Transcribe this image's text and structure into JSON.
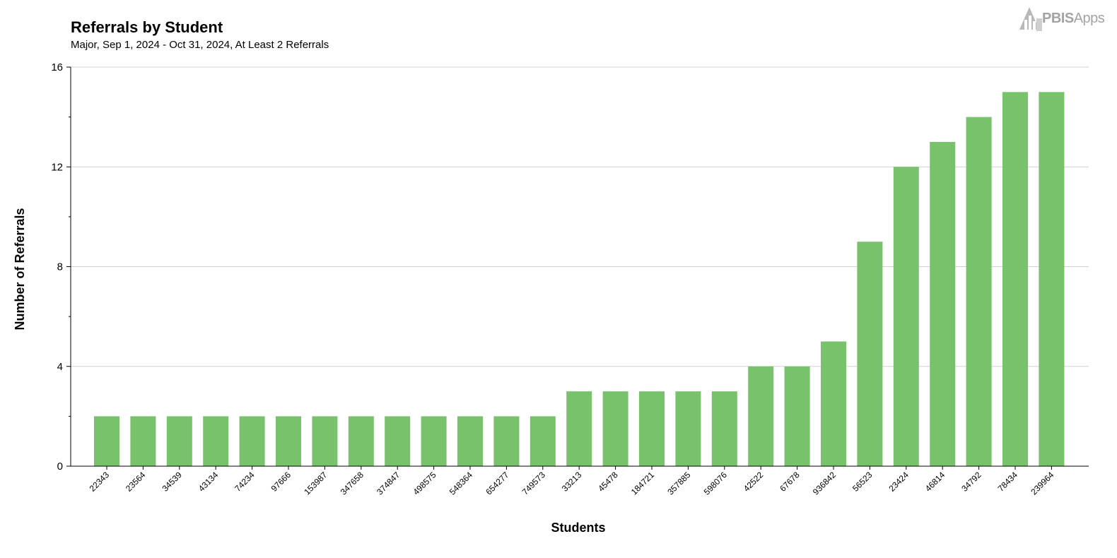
{
  "header": {
    "title": "Referrals by Student",
    "subtitle": "Major, Sep 1, 2024 - Oct 31, 2024, At Least 2 Referrals"
  },
  "logo": {
    "text_bold": "PBIS",
    "text_light": "Apps",
    "icon": "pbis-building-logo-icon"
  },
  "colors": {
    "bar": "#78c26b",
    "grid": "#d0d0d0",
    "axis": "#000000"
  },
  "chart_data": {
    "type": "bar",
    "xlabel": "Students",
    "ylabel": "Number of Referrals",
    "ylim": [
      0,
      16
    ],
    "yticks": [
      0,
      4,
      8,
      12,
      16
    ],
    "grid": true,
    "legend": "none",
    "categories": [
      "22343",
      "23564",
      "34539",
      "43134",
      "74234",
      "97666",
      "153987",
      "347658",
      "374847",
      "498575",
      "548364",
      "654277",
      "749573",
      "33213",
      "45478",
      "184721",
      "357885",
      "598076",
      "42522",
      "67678",
      "936842",
      "56523",
      "23424",
      "46814",
      "34792",
      "78434",
      "239964"
    ],
    "values": [
      2,
      2,
      2,
      2,
      2,
      2,
      2,
      2,
      2,
      2,
      2,
      2,
      2,
      3,
      3,
      3,
      3,
      3,
      4,
      4,
      5,
      9,
      12,
      13,
      14,
      15,
      15
    ]
  }
}
